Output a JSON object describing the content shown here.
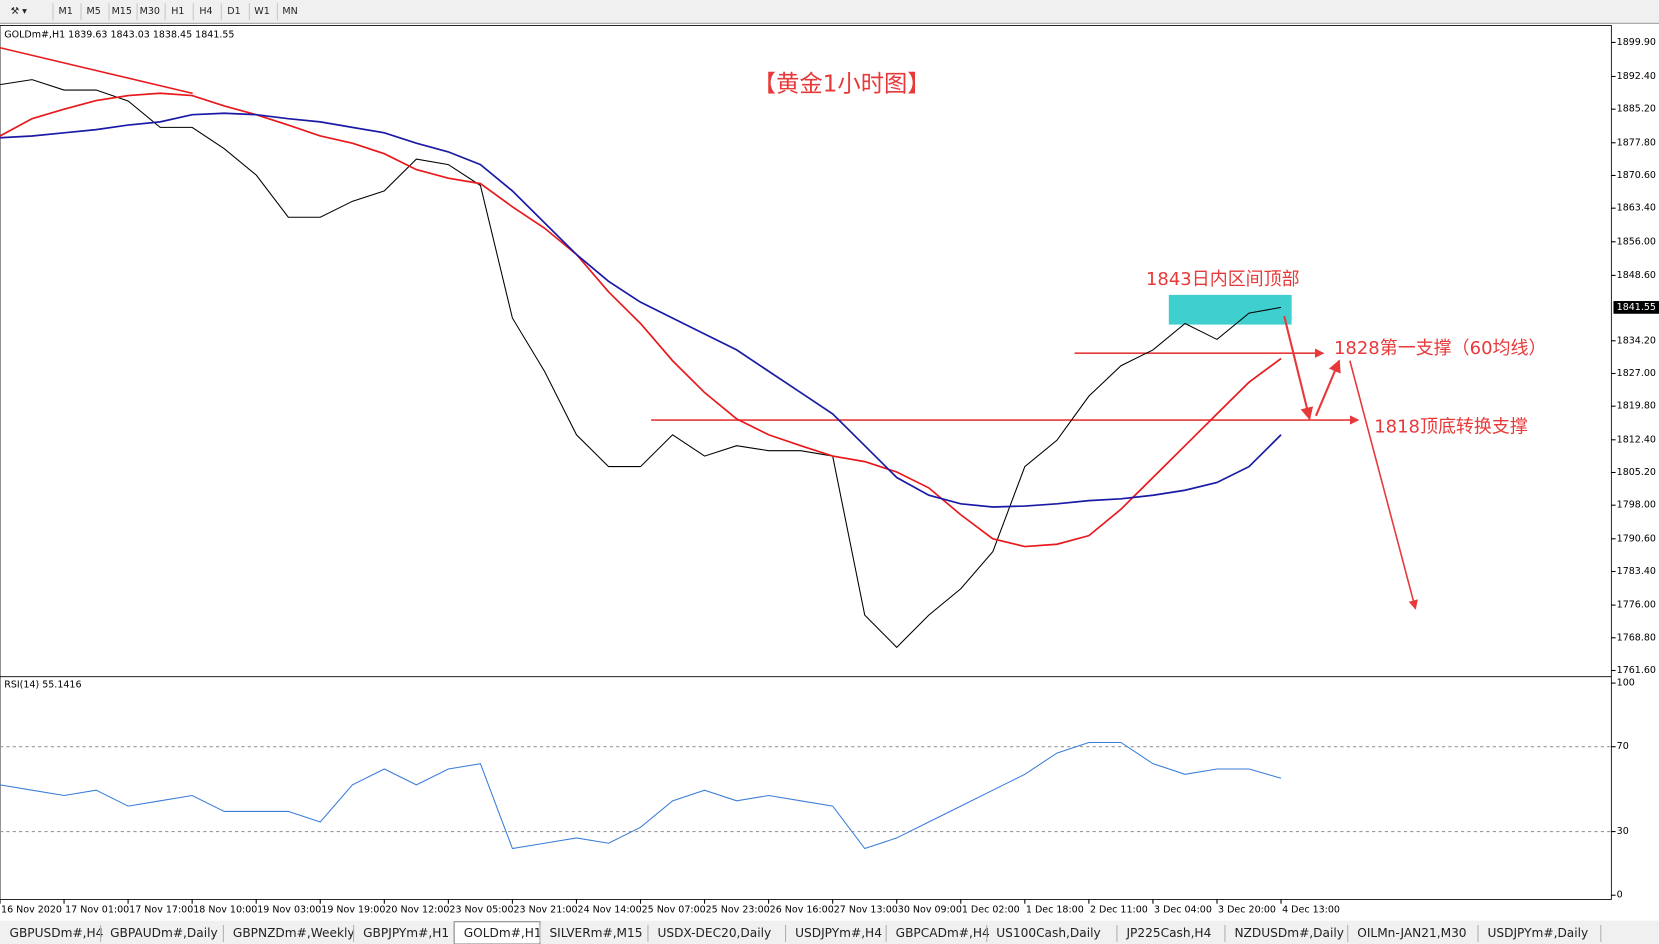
{
  "toolbar": {
    "periods": [
      "M1",
      "M5",
      "M15",
      "M30",
      "H1",
      "H4",
      "D1",
      "W1",
      "MN"
    ]
  },
  "chart_data": {
    "type": "line",
    "header": "GOLDm#,H1  1839.63 1843.03 1838.45 1841.55",
    "title": "【黄金1小时图】",
    "annotations": [
      "1843日内区间顶部",
      "1828第一支撑（60均线）",
      "1818顶底转换支撑"
    ],
    "categories": [
      "16 Nov 2020",
      null,
      "17 Nov 01:00",
      null,
      "17 Nov 17:00",
      null,
      "18 Nov 10:00",
      null,
      "19 Nov 03:00",
      null,
      "19 Nov 19:00",
      null,
      "20 Nov 12:00",
      null,
      "23 Nov 05:00",
      null,
      "23 Nov 21:00",
      null,
      "24 Nov 14:00",
      null,
      "25 Nov 07:00",
      null,
      "25 Nov 23:00",
      null,
      "26 Nov 16:00",
      null,
      "27 Nov 13:00",
      null,
      "30 Nov 09:00",
      null,
      "1 Dec 02:00",
      null,
      "1 Dec 18:00",
      null,
      "2 Dec 11:00",
      null,
      "3 Dec 04:00",
      null,
      "3 Dec 20:00",
      null,
      "4 Dec 13:00"
    ],
    "series": [
      {
        "color": "#000000",
        "values": [
          1890.6,
          1891.7,
          1889.4,
          1889.4,
          1887.0,
          1881.2,
          1881.2,
          1876.5,
          1870.7,
          1861.4,
          1861.4,
          1864.9,
          1867.2,
          1874.2,
          1873.0,
          1868.4,
          1839.2,
          1827.5,
          1813.5,
          1806.5,
          1806.5,
          1813.5,
          1808.8,
          1811.1,
          1810.0,
          1810.0,
          1808.8,
          1773.8,
          1766.7,
          1773.8,
          1779.6,
          1787.8,
          1806.5,
          1812.3,
          1822.0,
          1828.7,
          1832.2,
          1838.0,
          1834.5,
          1840.3,
          1841.55
        ]
      },
      {
        "color": "#e8191c",
        "values": [
          1879.3,
          1883.1,
          1885.2,
          1887.1,
          1888.2,
          1888.7,
          1888.2,
          1885.9,
          1884.0,
          1881.7,
          1879.3,
          1877.7,
          1875.4,
          1871.9,
          1870.0,
          1868.8,
          1863.7,
          1859.0,
          1853.2,
          1845.0,
          1838.0,
          1829.8,
          1822.8,
          1817.0,
          1813.5,
          1811.1,
          1808.8,
          1807.6,
          1805.3,
          1801.8,
          1795.9,
          1790.6,
          1788.9,
          1789.4,
          1791.3,
          1797.1,
          1804.1,
          1811.1,
          1818.1,
          1825.1,
          1830.3
        ]
      },
      {
        "color": "#1a1aa6",
        "values": [
          1878.9,
          1879.3,
          1880.0,
          1880.7,
          1881.7,
          1882.4,
          1884.0,
          1884.3,
          1884.0,
          1883.1,
          1882.4,
          1881.2,
          1880.0,
          1877.7,
          1875.8,
          1873.0,
          1867.2,
          1860.2,
          1853.2,
          1847.3,
          1842.7,
          1839.2,
          1835.7,
          1832.2,
          1827.5,
          1822.8,
          1818.1,
          1811.1,
          1804.1,
          1800.2,
          1798.3,
          1797.6,
          1797.8,
          1798.3,
          1799.0,
          1799.4,
          1800.2,
          1801.3,
          1803.0,
          1806.5,
          1813.5
        ]
      }
    ],
    "ylim": [
      1760.7,
      1903.4
    ],
    "yticks": [
      {
        "value": 1761.6,
        "label": "1761.60"
      },
      {
        "value": 1768.8,
        "label": "1768.80"
      },
      {
        "value": 1776,
        "label": "1776.00"
      },
      {
        "value": 1783.4,
        "label": "1783.40"
      },
      {
        "value": 1790.6,
        "label": "1790.60"
      },
      {
        "value": 1798,
        "label": "1798.00"
      },
      {
        "value": 1805.2,
        "label": "1805.20"
      },
      {
        "value": 1812.4,
        "label": "1812.40"
      },
      {
        "value": 1819.8,
        "label": "1819.80"
      },
      {
        "value": 1827,
        "label": "1827.00"
      },
      {
        "value": 1834.2,
        "label": "1834.20"
      },
      {
        "value": 1848.6,
        "label": "1848.60"
      },
      {
        "value": 1856,
        "label": "1856.00"
      },
      {
        "value": 1863.4,
        "label": "1863.40"
      },
      {
        "value": 1870.6,
        "label": "1870.60"
      },
      {
        "value": 1877.8,
        "label": "1877.80"
      },
      {
        "value": 1885.2,
        "label": "1885.20"
      },
      {
        "value": 1892.4,
        "label": "1892.40"
      },
      {
        "value": 1899.9,
        "label": "1899.90"
      }
    ],
    "current_price": {
      "value": 1841.55,
      "label": "1841.55"
    },
    "grid": false
  },
  "rsi": {
    "type": "line",
    "label": "RSI(14) 55.1416",
    "color": "#3b7dd8",
    "values": [
      52,
      49.5,
      47,
      49.5,
      42,
      44.5,
      47,
      39.5,
      39.5,
      39.5,
      34.5,
      52,
      59.5,
      52,
      59.5,
      62,
      22,
      24.5,
      27,
      24.5,
      32,
      44.5,
      49.5,
      44.5,
      47,
      44.5,
      42,
      22,
      27,
      34.5,
      42,
      49.5,
      57,
      67,
      72,
      72,
      62,
      57,
      59.5,
      59.5,
      55.1416
    ],
    "ylim": [
      0,
      100
    ],
    "yticks": [
      0,
      30,
      70,
      100
    ],
    "level_lines": true
  },
  "tabs": [
    "GBPUSDm#,H4",
    "GBPAUDm#,Daily",
    "GBPNZDm#,Weekly",
    "GBPJPYm#,H1",
    "GOLDm#,H1",
    "SILVERm#,M15",
    "USDX-DEC20,Daily",
    "USDJPYm#,H4",
    "GBPCADm#,H4",
    "US100Cash,Daily",
    "JP225Cash,H4",
    "NZDUSDm#,Daily",
    "OILMn-JAN21,M30",
    "USDJPYm#,Daily"
  ],
  "active_tab": 4
}
